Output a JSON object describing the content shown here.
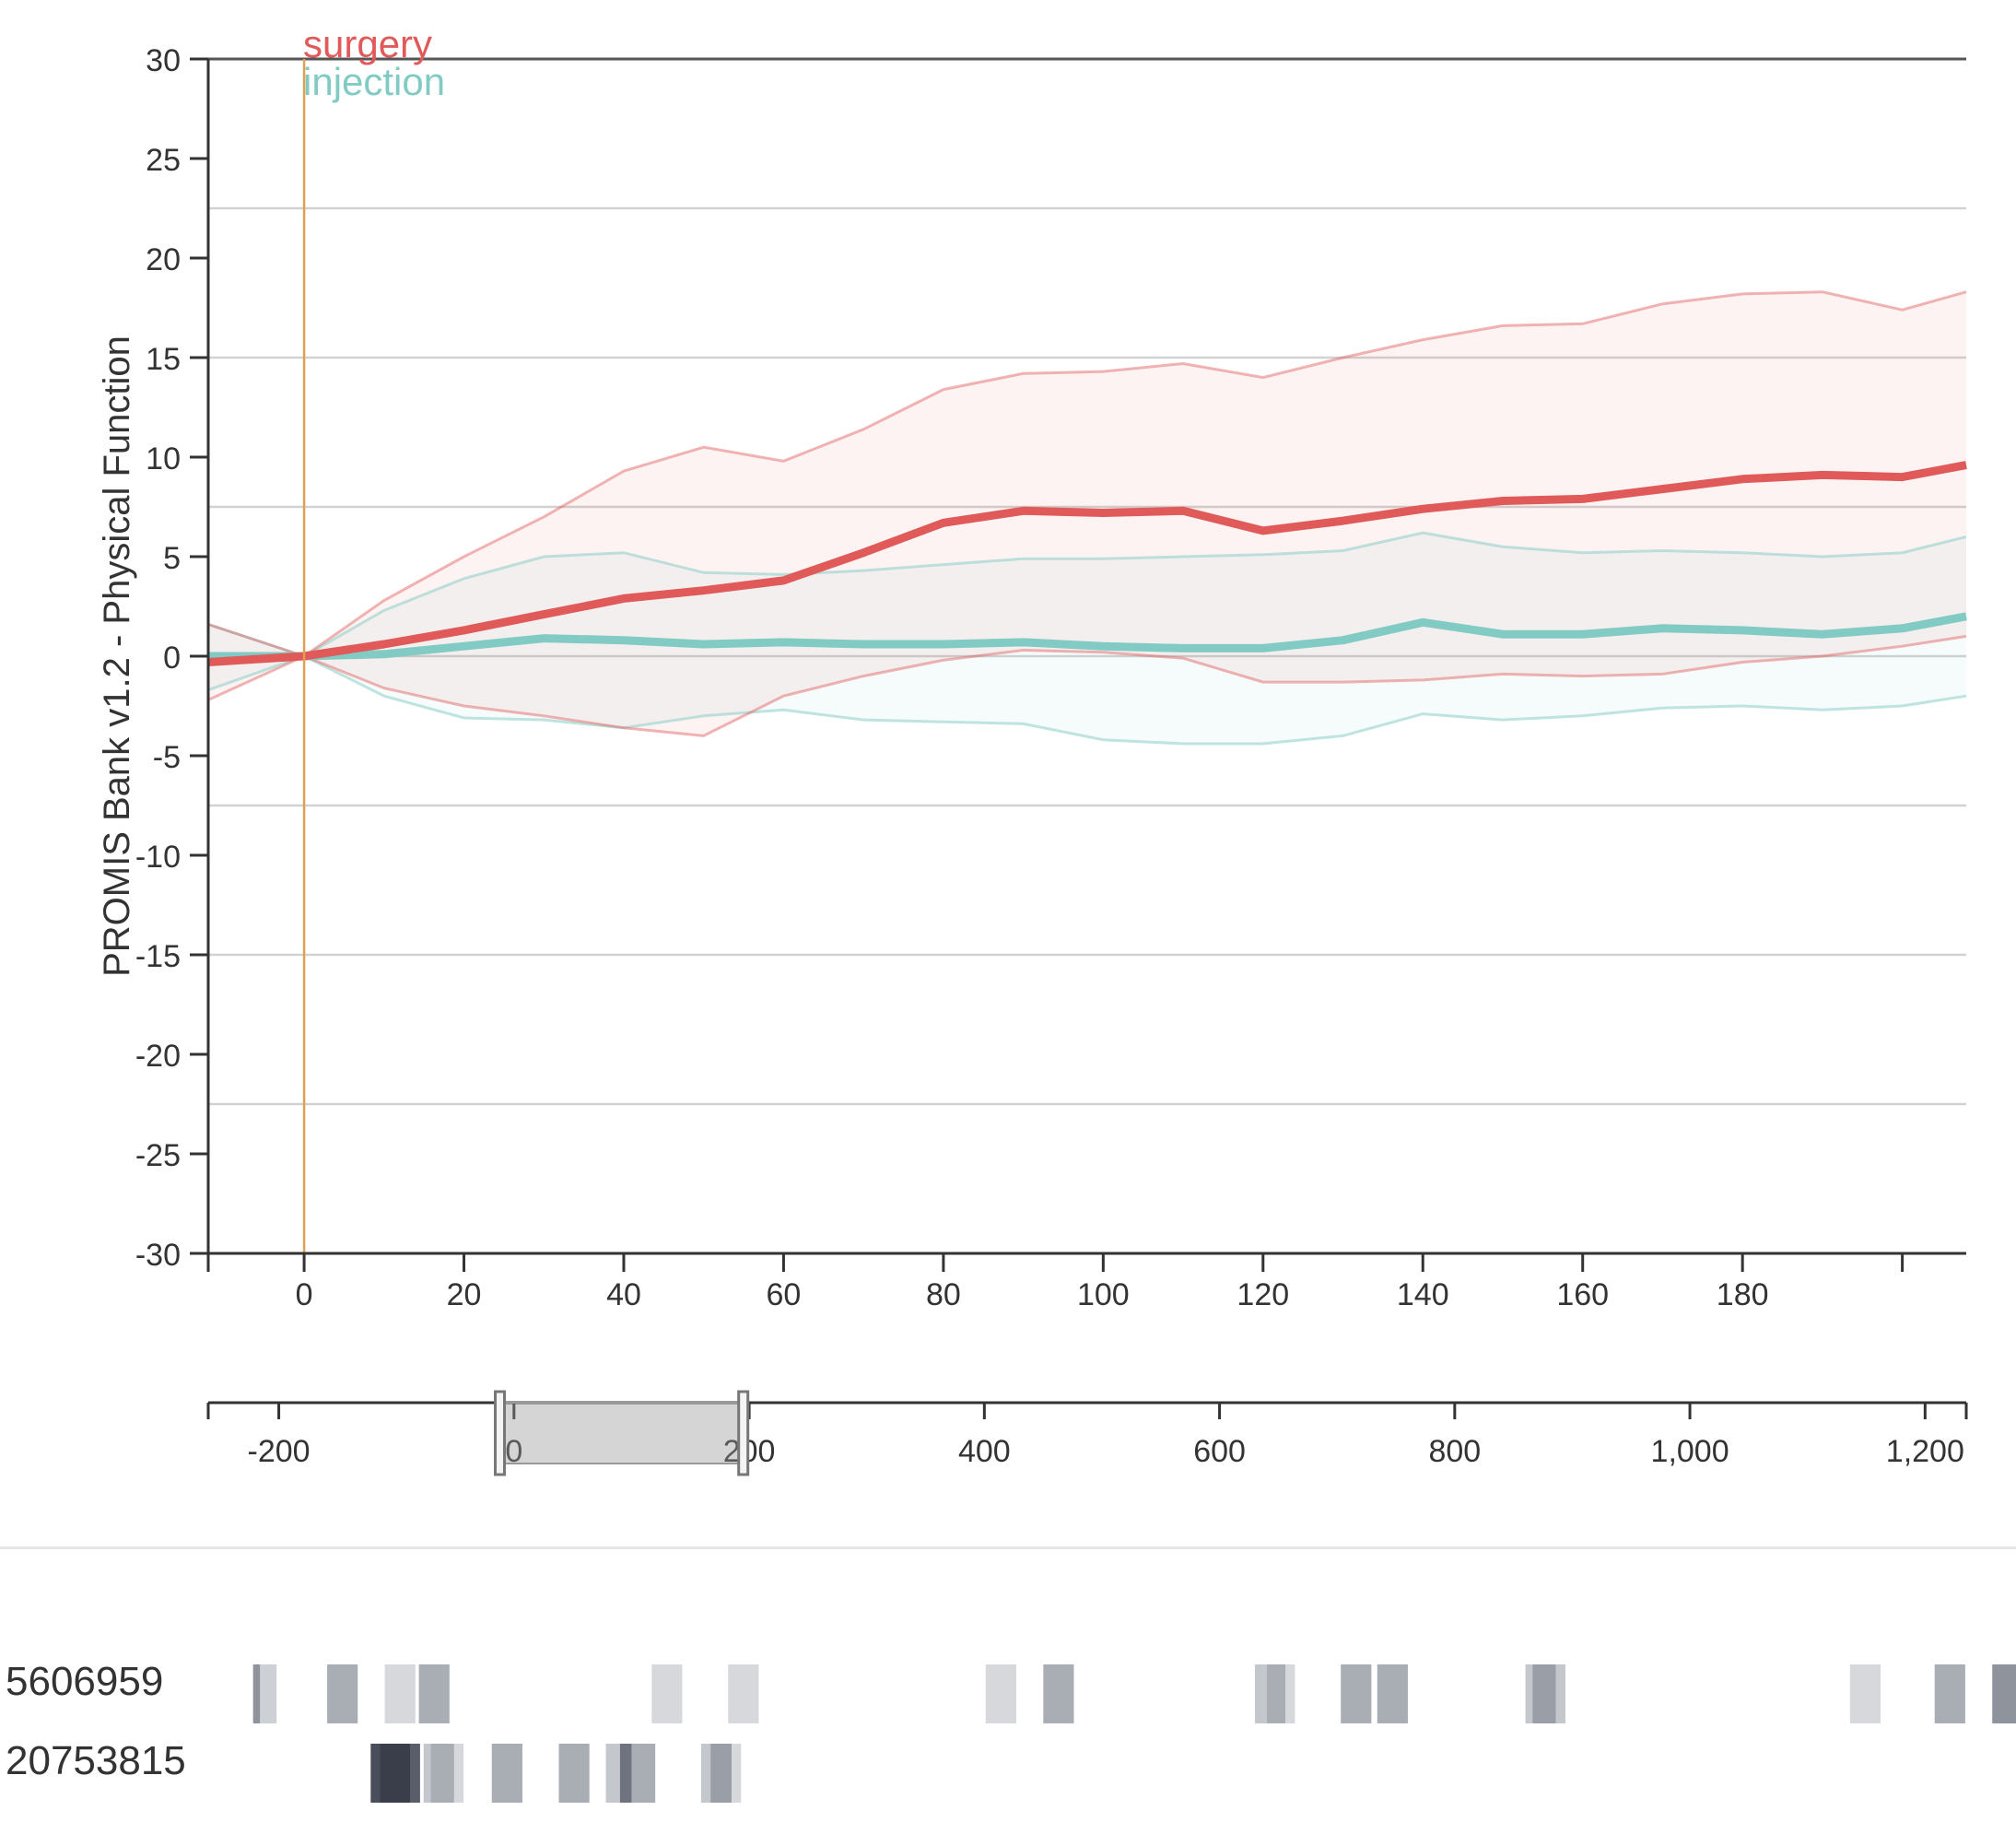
{
  "chart_data": {
    "type": "line",
    "ylabel": "PROMIS Bank v1.2 - Physical Function",
    "xlabel": "",
    "ylim": [
      -30,
      30
    ],
    "xlim": [
      -12,
      208
    ],
    "yticks": [
      "30",
      "25",
      "20",
      "15",
      "10",
      "5",
      "0",
      "-5",
      "-10",
      "-15",
      "-20",
      "-25",
      "-30"
    ],
    "xticks": [
      "0",
      "20",
      "40",
      "60",
      "80",
      "100",
      "120",
      "140",
      "160",
      "180"
    ],
    "grid_y": [
      22.5,
      15,
      7.5,
      0,
      -7.5,
      -15,
      -22.5
    ],
    "event_line_x": 0,
    "legend": [
      "surgery",
      "injection"
    ],
    "x": [
      -12,
      0,
      10,
      20,
      30,
      40,
      50,
      60,
      70,
      80,
      90,
      100,
      110,
      120,
      130,
      140,
      150,
      160,
      170,
      180,
      190,
      200,
      208
    ],
    "series": [
      {
        "name": "surgery",
        "color": "#e05a5a",
        "mean": [
          -0.3,
          0,
          0.6,
          1.3,
          2.1,
          2.9,
          3.3,
          3.8,
          5.2,
          6.7,
          7.3,
          7.2,
          7.3,
          6.3,
          6.8,
          7.4,
          7.8,
          7.9,
          8.4,
          8.9,
          9.1,
          9.0,
          9.6
        ],
        "upper": [
          1.6,
          0,
          2.8,
          5.0,
          7.0,
          9.3,
          10.5,
          9.8,
          11.4,
          13.4,
          14.2,
          14.3,
          14.7,
          14.0,
          15.0,
          15.9,
          16.6,
          16.7,
          17.7,
          18.2,
          18.3,
          17.4,
          18.3
        ],
        "lower": [
          -2.2,
          0,
          -1.6,
          -2.5,
          -3.0,
          -3.6,
          -4.0,
          -2.0,
          -1.0,
          -0.2,
          0.3,
          0.2,
          -0.1,
          -1.3,
          -1.3,
          -1.2,
          -0.9,
          -1.0,
          -0.9,
          -0.3,
          0.0,
          0.5,
          1.0
        ]
      },
      {
        "name": "injection",
        "color": "#82cbc4",
        "mean": [
          0.0,
          0,
          0.1,
          0.5,
          0.9,
          0.8,
          0.6,
          0.7,
          0.6,
          0.6,
          0.7,
          0.5,
          0.4,
          0.4,
          0.8,
          1.7,
          1.1,
          1.1,
          1.4,
          1.3,
          1.1,
          1.4,
          2.0
        ],
        "upper": [
          1.6,
          0,
          2.3,
          3.9,
          5.0,
          5.2,
          4.2,
          4.1,
          4.3,
          4.6,
          4.9,
          4.9,
          5.0,
          5.1,
          5.3,
          6.2,
          5.5,
          5.2,
          5.3,
          5.2,
          5.0,
          5.2,
          6.0
        ],
        "lower": [
          -1.7,
          0,
          -2.0,
          -3.1,
          -3.2,
          -3.6,
          -3.0,
          -2.7,
          -3.2,
          -3.3,
          -3.4,
          -4.2,
          -4.4,
          -4.4,
          -4.0,
          -2.9,
          -3.2,
          -3.0,
          -2.6,
          -2.5,
          -2.7,
          -2.5,
          -2.0
        ]
      }
    ],
    "overview": {
      "xlim": [
        -260,
        1235
      ],
      "xticks": [
        "-200",
        "0",
        "200",
        "400",
        "600",
        "800",
        "1,000",
        "1,200"
      ],
      "brush": [
        -12,
        195
      ]
    }
  },
  "patients": [
    {
      "id": "5606959",
      "events": [
        {
          "x": -225,
          "w": 6,
          "shade": "#8f949c"
        },
        {
          "x": -219,
          "w": 14,
          "shade": "#cdd0d5"
        },
        {
          "x": -162,
          "w": 26,
          "shade": "#a9adb4"
        },
        {
          "x": -113,
          "w": 26,
          "shade": "#d6d8dc"
        },
        {
          "x": -84,
          "w": 26,
          "shade": "#a9adb4"
        },
        {
          "x": 114,
          "w": 26,
          "shade": "#d6d8dc"
        },
        {
          "x": 179,
          "w": 26,
          "shade": "#d6d8dc"
        },
        {
          "x": 398,
          "w": 26,
          "shade": "#d6d8dc"
        },
        {
          "x": 447,
          "w": 26,
          "shade": "#a9adb4"
        },
        {
          "x": 627,
          "w": 10,
          "shade": "#c4c7cc"
        },
        {
          "x": 637,
          "w": 16,
          "shade": "#a9adb4"
        },
        {
          "x": 653,
          "w": 8,
          "shade": "#d6d8dc"
        },
        {
          "x": 700,
          "w": 26,
          "shade": "#a9adb4"
        },
        {
          "x": 731,
          "w": 26,
          "shade": "#a9adb4"
        },
        {
          "x": 857,
          "w": 6,
          "shade": "#c4c7cc"
        },
        {
          "x": 863,
          "w": 20,
          "shade": "#9a9ea6"
        },
        {
          "x": 883,
          "w": 8,
          "shade": "#c4c7cc"
        },
        {
          "x": 1133,
          "w": 26,
          "shade": "#d6d8dc"
        },
        {
          "x": 1205,
          "w": 26,
          "shade": "#a9adb4"
        },
        {
          "x": 1254,
          "w": 26,
          "shade": "#8f949c"
        }
      ]
    },
    {
      "id": "20753815",
      "events": [
        {
          "x": -125,
          "w": 8,
          "shade": "#4a4e5a"
        },
        {
          "x": -117,
          "w": 26,
          "shade": "#3a3e4a"
        },
        {
          "x": -91,
          "w": 8,
          "shade": "#5a5e6a"
        },
        {
          "x": -80,
          "w": 6,
          "shade": "#c4c7cc"
        },
        {
          "x": -74,
          "w": 20,
          "shade": "#a9adb4"
        },
        {
          "x": -54,
          "w": 8,
          "shade": "#d6d8dc"
        },
        {
          "x": -22,
          "w": 26,
          "shade": "#a9adb4"
        },
        {
          "x": 35,
          "w": 26,
          "shade": "#a9adb4"
        },
        {
          "x": 75,
          "w": 12,
          "shade": "#c4c7cc"
        },
        {
          "x": 87,
          "w": 10,
          "shade": "#6f7380"
        },
        {
          "x": 97,
          "w": 20,
          "shade": "#a9adb4"
        },
        {
          "x": 156,
          "w": 8,
          "shade": "#c4c7cc"
        },
        {
          "x": 164,
          "w": 18,
          "shade": "#9a9ea6"
        },
        {
          "x": 182,
          "w": 8,
          "shade": "#d6d8dc"
        }
      ]
    }
  ]
}
